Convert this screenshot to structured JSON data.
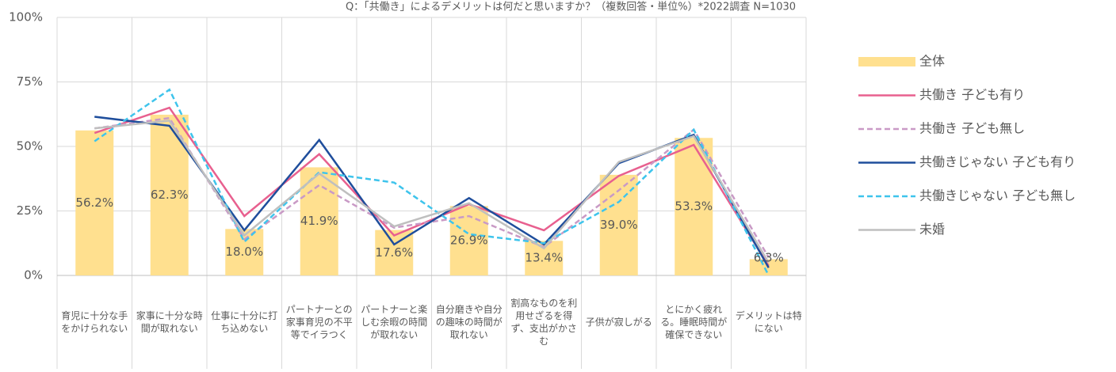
{
  "chart_data": {
    "type": "bar",
    "title": "Q：「共働き」によるデメリットは何だと思いますか？（複数回答・単位%）*2022調査 N=1030",
    "categories": [
      "育児に十分な手をかけられない",
      "家事に十分な時間が取れない",
      "仕事に十分に打ち込めない",
      "パートナーとの家事育児の不平等でイラつく",
      "パートナーと楽しむ余暇の時間が取れない",
      "自分磨きや自分の趣味の時間が取れない",
      "割高なものを利用せざるを得ず、支出がかさむ",
      "子供が寂しがる",
      "とにかく疲れる。睡眠時間が確保できない",
      "デメリットは特にない"
    ],
    "ylim": [
      0,
      100
    ],
    "yticks": [
      {
        "value": 0,
        "label": "0%"
      },
      {
        "value": 25,
        "label": "25%"
      },
      {
        "value": 50,
        "label": "50%"
      },
      {
        "value": 75,
        "label": "75%"
      },
      {
        "value": 100,
        "label": "100%"
      }
    ],
    "grid": true,
    "legend": "right",
    "series": [
      {
        "name": "全体",
        "type": "bar",
        "color": "#ffe08f",
        "values": [
          56.2,
          62.3,
          18.0,
          41.9,
          17.6,
          26.9,
          13.4,
          39.0,
          53.3,
          6.3
        ],
        "value_labels": [
          "56.2%",
          "62.3%",
          "18.0%",
          "41.9%",
          "17.6%",
          "26.9%",
          "13.4%",
          "39.0%",
          "53.3%",
          "6.3%"
        ]
      },
      {
        "name": "共働き 子ども有り",
        "type": "line",
        "color": "#e8608f",
        "dashed": false,
        "values": [
          55.2,
          65,
          23,
          47,
          15.5,
          27.6,
          17.5,
          38.6,
          50.6,
          3.7
        ]
      },
      {
        "name": "共働き 子ども無し",
        "type": "line",
        "color": "#c99ac6",
        "dashed": true,
        "values": [
          57,
          61,
          14,
          35,
          18.5,
          23,
          11,
          33,
          56.5,
          7
        ]
      },
      {
        "name": "共働きじゃない 子ども有り",
        "type": "line",
        "color": "#1f4e9c",
        "dashed": false,
        "values": [
          61.5,
          58,
          17.5,
          52.5,
          12,
          30,
          12,
          43.5,
          54.5,
          3
        ]
      },
      {
        "name": "共働きじゃない 子ども無し",
        "type": "line",
        "color": "#3ec4ec",
        "dashed": true,
        "values": [
          52,
          72,
          13,
          40,
          36,
          16,
          12.5,
          28.5,
          56.5,
          0
        ]
      },
      {
        "name": "未婚",
        "type": "line",
        "color": "#bfbfbf",
        "dashed": false,
        "values": [
          57,
          60,
          15.5,
          39.5,
          19,
          28,
          10.5,
          44,
          54,
          5
        ]
      }
    ]
  }
}
